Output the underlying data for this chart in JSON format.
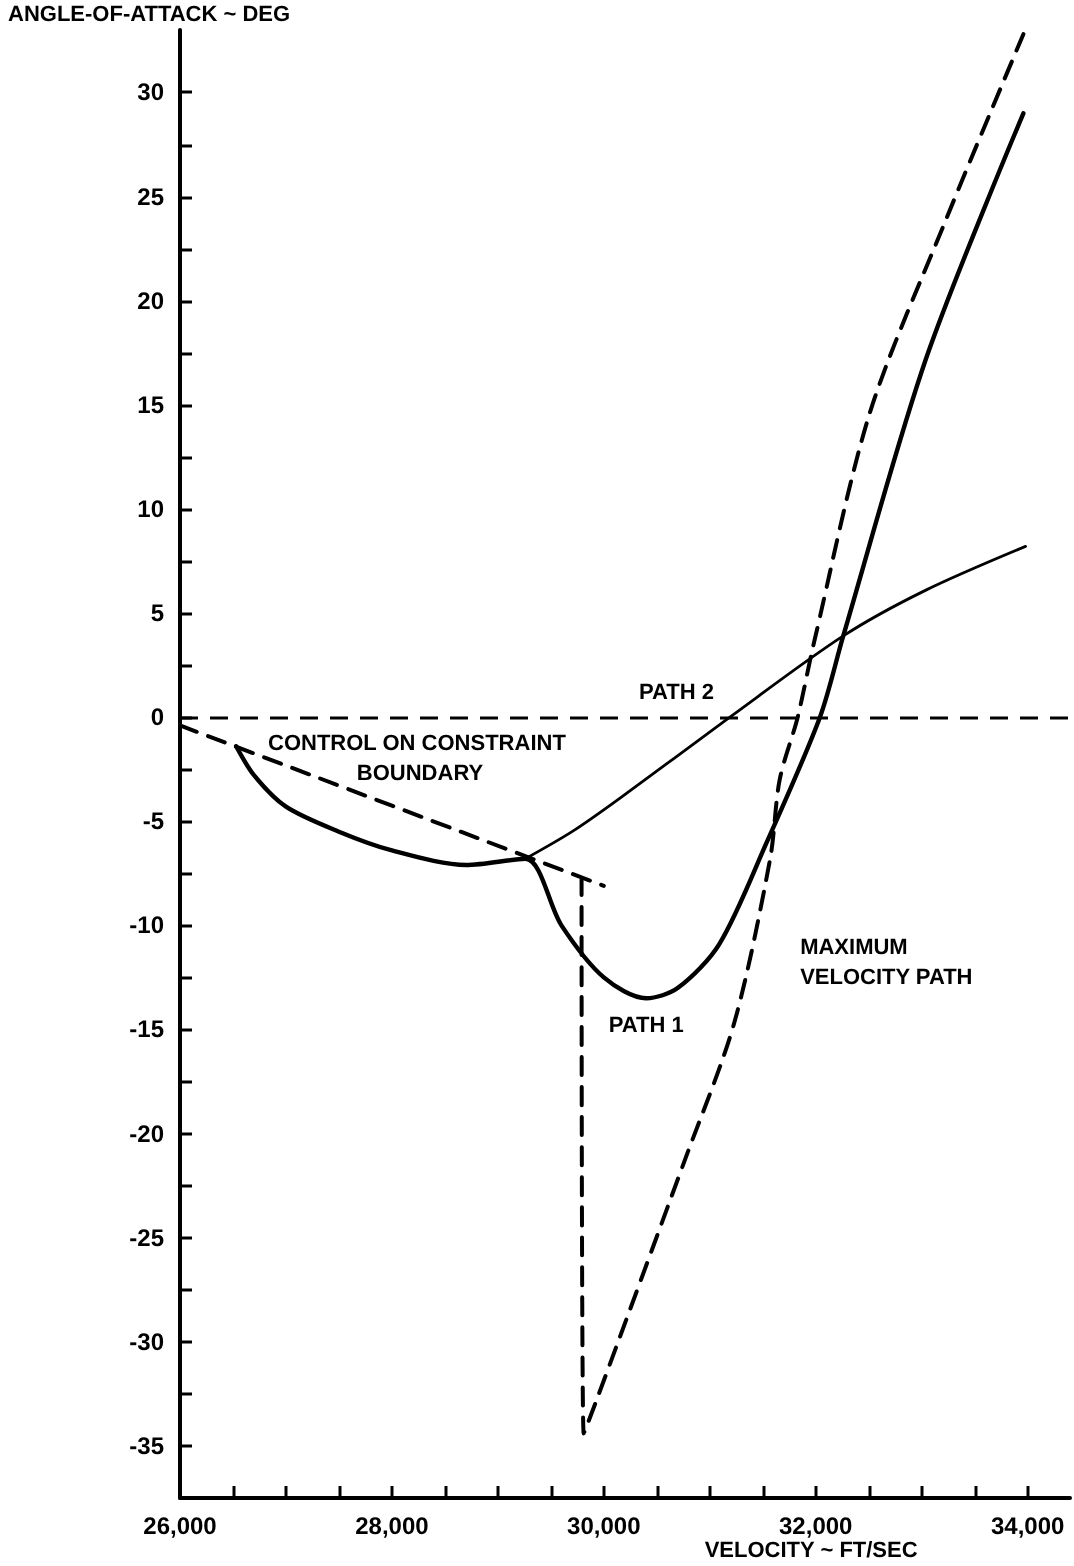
{
  "chart_data": {
    "type": "line",
    "xlabel": "VELOCITY ~ FT/SEC",
    "ylabel": "ANGLE-OF-ATTACK ~ DEG",
    "xlim": [
      26000,
      34400
    ],
    "ylim": [
      -37.5,
      33
    ],
    "xticks": [
      {
        "value": 26000,
        "label": "26,000"
      },
      {
        "value": 26500,
        "label": null
      },
      {
        "value": 27000,
        "label": null
      },
      {
        "value": 27500,
        "label": null
      },
      {
        "value": 28000,
        "label": "28,000"
      },
      {
        "value": 28500,
        "label": null
      },
      {
        "value": 29000,
        "label": null
      },
      {
        "value": 29500,
        "label": null
      },
      {
        "value": 30000,
        "label": "30,000"
      },
      {
        "value": 30500,
        "label": null
      },
      {
        "value": 31000,
        "label": null
      },
      {
        "value": 31500,
        "label": null
      },
      {
        "value": 32000,
        "label": "32,000"
      },
      {
        "value": 32500,
        "label": null
      },
      {
        "value": 33000,
        "label": null
      },
      {
        "value": 33500,
        "label": null
      },
      {
        "value": 34000,
        "label": "34,000"
      }
    ],
    "yticks": [
      -35,
      {
        "value": -32.5,
        "label": null
      },
      -30,
      {
        "value": -27.5,
        "label": null
      },
      -25,
      {
        "value": -22.5,
        "label": null
      },
      -20,
      {
        "value": -17.5,
        "label": null
      },
      -15,
      {
        "value": -12.5,
        "label": null
      },
      -10,
      {
        "value": -7.5,
        "label": null
      },
      -5,
      {
        "value": -2.5,
        "label": null
      },
      0,
      {
        "value": 2.5,
        "label": null
      },
      5,
      {
        "value": 7.5,
        "label": null
      },
      10,
      {
        "value": 12.5,
        "label": null
      },
      15,
      {
        "value": 17.5,
        "label": null
      },
      20,
      {
        "value": 22.5,
        "label": null
      },
      25,
      {
        "value": 27.5,
        "label": null
      },
      30
    ],
    "grid": false,
    "legend": false,
    "marker": "none",
    "ref_lines": [
      {
        "axis": "y",
        "value": 0,
        "color": "#000000",
        "line_style": "dashed"
      }
    ],
    "series": [
      {
        "name": "PATH 1",
        "color": "#000000",
        "line_style": "solid",
        "x": [
          33960,
          33040,
          32260,
          32040,
          31530,
          31090,
          30700,
          30400,
          30000,
          29600,
          29260,
          28700,
          28000,
          27500,
          27000,
          26700,
          26530
        ],
        "values": [
          29,
          17.2,
          3.9,
          0,
          -6.1,
          -10.9,
          -13,
          -13.5,
          -12.5,
          -10,
          -6.8,
          -7.1,
          -6.4,
          -5.5,
          -4.3,
          -2.8,
          -1.4
        ]
      },
      {
        "name": "PATH 2",
        "color": "#000000",
        "line_style": "solid",
        "x": [
          33980,
          33040,
          32260,
          31190,
          30150,
          29700,
          29260
        ],
        "values": [
          8.2,
          6.1,
          3.9,
          0,
          -3.9,
          -5.5,
          -6.8
        ]
      },
      {
        "name": "CONTROL ON CONSTRAINT BOUNDARY",
        "color": "#000000",
        "line_style": "dashed",
        "x": [
          26000,
          30000
        ],
        "values": [
          -0.4,
          -8.1
        ]
      },
      {
        "name": "MAXIMUM VELOCITY PATH",
        "color": "#000000",
        "line_style": "dashed",
        "x": [
          33960,
          33230,
          32510,
          31980,
          31830,
          31660,
          31570,
          31230,
          30770,
          29810,
          29790
        ],
        "values": [
          32.8,
          23.9,
          14.6,
          3.5,
          0,
          -3,
          -6.8,
          -14.7,
          -21.2,
          -34.4,
          -7.8
        ]
      }
    ]
  }
}
